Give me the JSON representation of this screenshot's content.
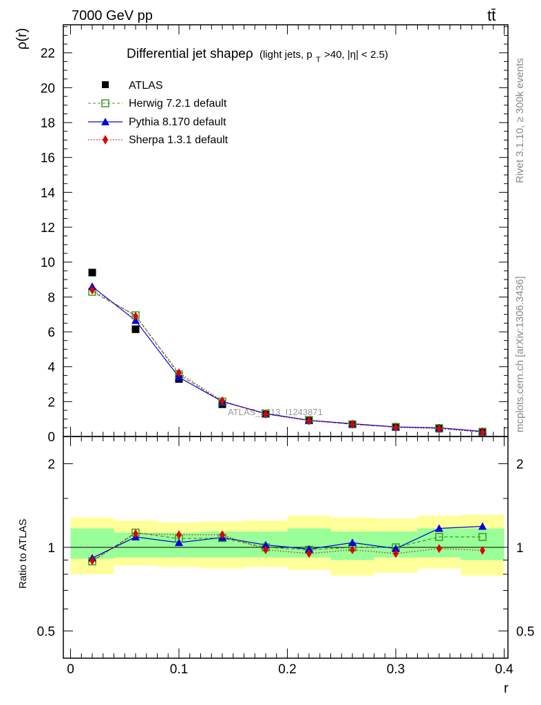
{
  "header": {
    "energy_label": "7000 GeV pp",
    "process_label": "tt̄"
  },
  "side_labels": {
    "rivet": "Rivet 3.1.10, ≥ 300k events",
    "mcplots": "mcplots.cern.ch [arXiv:1306.3436]"
  },
  "colors": {
    "data": "#000000",
    "herwig": "#3a9a1a",
    "pythia": "#0000dd",
    "sherpa": "#dd0000",
    "band_outer": "#ffff99",
    "band_inner": "#99ff99"
  },
  "chart_data": [
    {
      "type": "scatter",
      "title": "Differential jet shapeρ",
      "title_suffix": "(light jets, p",
      "title_sub": "T",
      "title_tail": ">40, |η| < 2.5)",
      "ylabel": "ρ(r)",
      "xlabel": "r",
      "ylim": [
        0,
        23.6
      ],
      "xlim": [
        -0.002,
        0.4
      ],
      "y_ticks": [
        0,
        2,
        4,
        6,
        8,
        10,
        12,
        14,
        16,
        18,
        20,
        22
      ],
      "watermark": "ATLAS_2013_I1243871",
      "legend": [
        "ATLAS",
        "Herwig 7.2.1 default",
        "Pythia 8.170 default",
        "Sherpa 1.3.1 default"
      ],
      "legend_position": "top-left",
      "x": [
        0.02,
        0.06,
        0.1,
        0.14,
        0.18,
        0.22,
        0.26,
        0.3,
        0.34,
        0.38
      ],
      "series": [
        {
          "name": "ATLAS",
          "values": [
            9.4,
            6.15,
            3.3,
            1.85,
            1.3,
            0.95,
            0.7,
            0.55,
            0.45,
            0.25
          ]
        },
        {
          "name": "Herwig 7.2.1 default",
          "values": [
            8.3,
            6.95,
            3.55,
            2.0,
            1.3,
            0.93,
            0.7,
            0.55,
            0.48,
            0.27
          ]
        },
        {
          "name": "Pythia 8.170 default",
          "values": [
            8.6,
            6.65,
            3.4,
            2.0,
            1.32,
            0.93,
            0.73,
            0.55,
            0.5,
            0.29
          ]
        },
        {
          "name": "Sherpa 1.3.1 default",
          "values": [
            8.4,
            6.9,
            3.65,
            2.05,
            1.28,
            0.9,
            0.7,
            0.52,
            0.45,
            0.24
          ]
        }
      ]
    },
    {
      "type": "line",
      "ylabel": "Ratio to ATLAS",
      "xlabel": "r",
      "log_y": true,
      "ylim": [
        0.4,
        2.4
      ],
      "y_tick_labels": [
        "0.5",
        "1",
        "2"
      ],
      "y_tick_values": [
        0.5,
        1,
        2
      ],
      "x_tick_labels": [
        "0",
        "0.1",
        "0.2",
        "0.3",
        "0.4"
      ],
      "x_tick_values": [
        0,
        0.1,
        0.2,
        0.3,
        0.4
      ],
      "x": [
        0.02,
        0.06,
        0.1,
        0.14,
        0.18,
        0.22,
        0.26,
        0.3,
        0.34,
        0.38
      ],
      "bands": {
        "outer": [
          [
            0.8,
            1.28
          ],
          [
            0.86,
            1.25
          ],
          [
            0.85,
            1.23
          ],
          [
            0.84,
            1.24
          ],
          [
            0.85,
            1.25
          ],
          [
            0.83,
            1.3
          ],
          [
            0.79,
            1.28
          ],
          [
            0.81,
            1.27
          ],
          [
            0.84,
            1.3
          ],
          [
            0.79,
            1.31
          ]
        ],
        "inner": [
          [
            0.91,
            1.17
          ],
          [
            0.92,
            1.13
          ],
          [
            0.92,
            1.13
          ],
          [
            0.92,
            1.14
          ],
          [
            0.92,
            1.14
          ],
          [
            0.92,
            1.17
          ],
          [
            0.9,
            1.14
          ],
          [
            0.92,
            1.14
          ],
          [
            0.92,
            1.17
          ],
          [
            0.9,
            1.17
          ]
        ]
      },
      "series": [
        {
          "name": "Herwig 7.2.1 default",
          "values": [
            0.89,
            1.13,
            1.075,
            1.08,
            1.0,
            0.98,
            1.0,
            1.0,
            1.09,
            1.09
          ]
        },
        {
          "name": "Pythia 8.170 default",
          "values": [
            0.915,
            1.09,
            1.04,
            1.085,
            1.02,
            0.985,
            1.04,
            0.99,
            1.17,
            1.19
          ]
        },
        {
          "name": "Sherpa 1.3.1 default",
          "values": [
            0.895,
            1.12,
            1.11,
            1.11,
            0.98,
            0.95,
            0.98,
            0.95,
            0.99,
            0.975
          ]
        }
      ]
    }
  ]
}
